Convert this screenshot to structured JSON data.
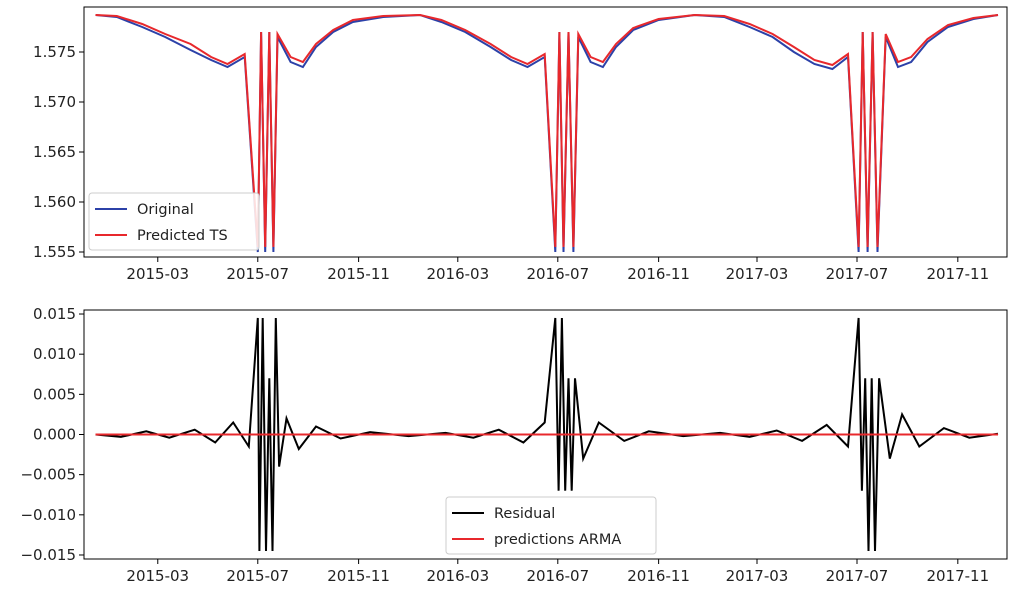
{
  "chart_data": [
    {
      "type": "line",
      "title": "",
      "xlabel": "",
      "ylabel": "",
      "x_range": [
        "2014-12-01",
        "2017-12-31"
      ],
      "ylim": [
        1.5545,
        1.5795
      ],
      "x_ticks": [
        "2015-03",
        "2015-07",
        "2015-11",
        "2016-03",
        "2016-07",
        "2016-11",
        "2017-03",
        "2017-07",
        "2017-11"
      ],
      "y_ticks": [
        "1.555",
        "1.560",
        "1.565",
        "1.570",
        "1.575"
      ],
      "grid": false,
      "legend": "lower-left",
      "series": [
        {
          "name": "Original",
          "color": "#2c41a8",
          "points": [
            [
              "2014-12-15",
              1.5787
            ],
            [
              "2015-01-10",
              1.5785
            ],
            [
              "2015-02-10",
              1.5775
            ],
            [
              "2015-03-10",
              1.5765
            ],
            [
              "2015-04-10",
              1.5752
            ],
            [
              "2015-05-05",
              1.5742
            ],
            [
              "2015-05-25",
              1.5735
            ],
            [
              "2015-06-15",
              1.5745
            ],
            [
              "2015-07-01",
              1.555
            ],
            [
              "2015-07-05",
              1.577
            ],
            [
              "2015-07-10",
              1.555
            ],
            [
              "2015-07-15",
              1.577
            ],
            [
              "2015-07-20",
              1.555
            ],
            [
              "2015-07-25",
              1.5765
            ],
            [
              "2015-08-10",
              1.574
            ],
            [
              "2015-08-25",
              1.5735
            ],
            [
              "2015-09-10",
              1.5755
            ],
            [
              "2015-10-01",
              1.577
            ],
            [
              "2015-10-25",
              1.578
            ],
            [
              "2015-12-01",
              1.5785
            ],
            [
              "2016-01-15",
              1.5787
            ],
            [
              "2016-02-10",
              1.578
            ],
            [
              "2016-03-10",
              1.577
            ],
            [
              "2016-04-10",
              1.5755
            ],
            [
              "2016-05-05",
              1.5742
            ],
            [
              "2016-05-25",
              1.5735
            ],
            [
              "2016-06-15",
              1.5745
            ],
            [
              "2016-06-28",
              1.555
            ],
            [
              "2016-07-03",
              1.577
            ],
            [
              "2016-07-08",
              1.555
            ],
            [
              "2016-07-14",
              1.577
            ],
            [
              "2016-07-20",
              1.555
            ],
            [
              "2016-07-26",
              1.5765
            ],
            [
              "2016-08-10",
              1.574
            ],
            [
              "2016-08-25",
              1.5735
            ],
            [
              "2016-09-10",
              1.5755
            ],
            [
              "2016-10-01",
              1.5772
            ],
            [
              "2016-11-01",
              1.5782
            ],
            [
              "2016-12-15",
              1.5787
            ],
            [
              "2017-01-20",
              1.5785
            ],
            [
              "2017-02-20",
              1.5775
            ],
            [
              "2017-03-20",
              1.5765
            ],
            [
              "2017-04-15",
              1.575
            ],
            [
              "2017-05-10",
              1.5738
            ],
            [
              "2017-06-01",
              1.5733
            ],
            [
              "2017-06-20",
              1.5745
            ],
            [
              "2017-07-03",
              1.555
            ],
            [
              "2017-07-08",
              1.577
            ],
            [
              "2017-07-14",
              1.555
            ],
            [
              "2017-07-20",
              1.577
            ],
            [
              "2017-07-26",
              1.555
            ],
            [
              "2017-08-05",
              1.5765
            ],
            [
              "2017-08-20",
              1.5735
            ],
            [
              "2017-09-05",
              1.574
            ],
            [
              "2017-09-25",
              1.576
            ],
            [
              "2017-10-20",
              1.5775
            ],
            [
              "2017-11-20",
              1.5783
            ],
            [
              "2017-12-20",
              1.5787
            ]
          ]
        },
        {
          "name": "Predicted TS",
          "color": "#e8282c",
          "points": [
            [
              "2014-12-15",
              1.5787
            ],
            [
              "2015-01-10",
              1.5786
            ],
            [
              "2015-02-10",
              1.5778
            ],
            [
              "2015-03-10",
              1.5768
            ],
            [
              "2015-04-10",
              1.5758
            ],
            [
              "2015-05-05",
              1.5745
            ],
            [
              "2015-05-25",
              1.5738
            ],
            [
              "2015-06-15",
              1.5748
            ],
            [
              "2015-07-01",
              1.5555
            ],
            [
              "2015-07-05",
              1.577
            ],
            [
              "2015-07-10",
              1.5555
            ],
            [
              "2015-07-15",
              1.577
            ],
            [
              "2015-07-20",
              1.5555
            ],
            [
              "2015-07-25",
              1.5768
            ],
            [
              "2015-08-10",
              1.5745
            ],
            [
              "2015-08-25",
              1.574
            ],
            [
              "2015-09-10",
              1.5758
            ],
            [
              "2015-10-01",
              1.5772
            ],
            [
              "2015-10-25",
              1.5782
            ],
            [
              "2015-12-01",
              1.5786
            ],
            [
              "2016-01-15",
              1.5787
            ],
            [
              "2016-02-10",
              1.5782
            ],
            [
              "2016-03-10",
              1.5772
            ],
            [
              "2016-04-10",
              1.5758
            ],
            [
              "2016-05-05",
              1.5745
            ],
            [
              "2016-05-25",
              1.5738
            ],
            [
              "2016-06-15",
              1.5748
            ],
            [
              "2016-06-28",
              1.5555
            ],
            [
              "2016-07-03",
              1.577
            ],
            [
              "2016-07-08",
              1.5555
            ],
            [
              "2016-07-14",
              1.577
            ],
            [
              "2016-07-20",
              1.5555
            ],
            [
              "2016-07-26",
              1.5768
            ],
            [
              "2016-08-10",
              1.5745
            ],
            [
              "2016-08-25",
              1.574
            ],
            [
              "2016-09-10",
              1.5758
            ],
            [
              "2016-10-01",
              1.5774
            ],
            [
              "2016-11-01",
              1.5783
            ],
            [
              "2016-12-15",
              1.5787
            ],
            [
              "2017-01-20",
              1.5786
            ],
            [
              "2017-02-20",
              1.5778
            ],
            [
              "2017-03-20",
              1.5768
            ],
            [
              "2017-04-15",
              1.5755
            ],
            [
              "2017-05-10",
              1.5742
            ],
            [
              "2017-06-01",
              1.5737
            ],
            [
              "2017-06-20",
              1.5748
            ],
            [
              "2017-07-03",
              1.5555
            ],
            [
              "2017-07-08",
              1.577
            ],
            [
              "2017-07-14",
              1.5555
            ],
            [
              "2017-07-20",
              1.577
            ],
            [
              "2017-07-26",
              1.5555
            ],
            [
              "2017-08-05",
              1.5768
            ],
            [
              "2017-08-20",
              1.574
            ],
            [
              "2017-09-05",
              1.5745
            ],
            [
              "2017-09-25",
              1.5763
            ],
            [
              "2017-10-20",
              1.5777
            ],
            [
              "2017-11-20",
              1.5784
            ],
            [
              "2017-12-20",
              1.5787
            ]
          ]
        }
      ]
    },
    {
      "type": "line",
      "title": "",
      "xlabel": "",
      "ylabel": "",
      "x_range": [
        "2014-12-01",
        "2017-12-31"
      ],
      "ylim": [
        -0.0155,
        0.0155
      ],
      "x_ticks": [
        "2015-03",
        "2015-07",
        "2015-11",
        "2016-03",
        "2016-07",
        "2016-11",
        "2017-03",
        "2017-07",
        "2017-11"
      ],
      "y_ticks": [
        "0.015",
        "0.010",
        "0.005",
        "0.000",
        "−0.005",
        "−0.010",
        "−0.015"
      ],
      "grid": false,
      "legend": "lower-center",
      "series": [
        {
          "name": "Residual",
          "color": "#000000",
          "points": [
            [
              "2014-12-15",
              0.0
            ],
            [
              "2015-01-15",
              -0.0003
            ],
            [
              "2015-02-15",
              0.0004
            ],
            [
              "2015-03-15",
              -0.0004
            ],
            [
              "2015-04-15",
              0.0006
            ],
            [
              "2015-05-10",
              -0.001
            ],
            [
              "2015-06-01",
              0.0015
            ],
            [
              "2015-06-20",
              -0.0015
            ],
            [
              "2015-07-01",
              0.0145
            ],
            [
              "2015-07-03",
              -0.0145
            ],
            [
              "2015-07-07",
              0.0145
            ],
            [
              "2015-07-11",
              -0.0145
            ],
            [
              "2015-07-15",
              0.007
            ],
            [
              "2015-07-19",
              -0.0145
            ],
            [
              "2015-07-23",
              0.0145
            ],
            [
              "2015-07-27",
              -0.004
            ],
            [
              "2015-08-05",
              0.002
            ],
            [
              "2015-08-20",
              -0.0018
            ],
            [
              "2015-09-10",
              0.001
            ],
            [
              "2015-10-10",
              -0.0005
            ],
            [
              "2015-11-15",
              0.0003
            ],
            [
              "2016-01-01",
              -0.0002
            ],
            [
              "2016-02-15",
              0.0002
            ],
            [
              "2016-03-20",
              -0.0004
            ],
            [
              "2016-04-20",
              0.0006
            ],
            [
              "2016-05-20",
              -0.001
            ],
            [
              "2016-06-15",
              0.0015
            ],
            [
              "2016-06-28",
              0.0145
            ],
            [
              "2016-07-02",
              -0.007
            ],
            [
              "2016-07-06",
              0.0145
            ],
            [
              "2016-07-10",
              -0.007
            ],
            [
              "2016-07-14",
              0.007
            ],
            [
              "2016-07-18",
              -0.007
            ],
            [
              "2016-07-22",
              0.007
            ],
            [
              "2016-08-01",
              -0.003
            ],
            [
              "2016-08-20",
              0.0015
            ],
            [
              "2016-09-20",
              -0.0008
            ],
            [
              "2016-10-20",
              0.0004
            ],
            [
              "2016-12-01",
              -0.0002
            ],
            [
              "2017-01-15",
              0.0002
            ],
            [
              "2017-02-20",
              -0.0003
            ],
            [
              "2017-03-25",
              0.0005
            ],
            [
              "2017-04-25",
              -0.0008
            ],
            [
              "2017-05-25",
              0.0012
            ],
            [
              "2017-06-20",
              -0.0015
            ],
            [
              "2017-07-03",
              0.0145
            ],
            [
              "2017-07-07",
              -0.007
            ],
            [
              "2017-07-11",
              0.007
            ],
            [
              "2017-07-15",
              -0.0145
            ],
            [
              "2017-07-19",
              0.007
            ],
            [
              "2017-07-23",
              -0.0145
            ],
            [
              "2017-07-28",
              0.007
            ],
            [
              "2017-08-10",
              -0.003
            ],
            [
              "2017-08-25",
              0.0025
            ],
            [
              "2017-09-15",
              -0.0015
            ],
            [
              "2017-10-15",
              0.0008
            ],
            [
              "2017-11-15",
              -0.0004
            ],
            [
              "2017-12-20",
              0.0001
            ]
          ]
        },
        {
          "name": "predictions ARMA",
          "color": "#e8282c",
          "points": [
            [
              "2014-12-15",
              0.0
            ],
            [
              "2017-12-20",
              0.0
            ]
          ]
        }
      ]
    }
  ]
}
